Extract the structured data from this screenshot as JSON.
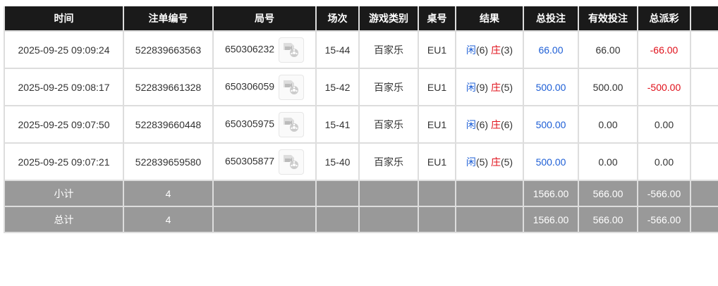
{
  "headers": [
    "时间",
    "注单编号",
    "局号",
    "场次",
    "游戏类别",
    "桌号",
    "结果",
    "总投注",
    "有效投注",
    "总派彩",
    ""
  ],
  "rows": [
    {
      "time": "2025-09-25 09:09:24",
      "bet_id": "522839663563",
      "round": "650306232",
      "shoe": "15-44",
      "game": "百家乐",
      "table": "EU1",
      "player_label": "闲",
      "player": "(6)",
      "banker_label": "庄",
      "banker": "(3)",
      "total_bet": "66.00",
      "valid_bet": "66.00",
      "payout": "-66.00"
    },
    {
      "time": "2025-09-25 09:08:17",
      "bet_id": "522839661328",
      "round": "650306059",
      "shoe": "15-42",
      "game": "百家乐",
      "table": "EU1",
      "player_label": "闲",
      "player": "(9)",
      "banker_label": "庄",
      "banker": "(5)",
      "total_bet": "500.00",
      "valid_bet": "500.00",
      "payout": "-500.00"
    },
    {
      "time": "2025-09-25 09:07:50",
      "bet_id": "522839660448",
      "round": "650305975",
      "shoe": "15-41",
      "game": "百家乐",
      "table": "EU1",
      "player_label": "闲",
      "player": "(6)",
      "banker_label": "庄",
      "banker": "(6)",
      "total_bet": "500.00",
      "valid_bet": "0.00",
      "payout": "0.00"
    },
    {
      "time": "2025-09-25 09:07:21",
      "bet_id": "522839659580",
      "round": "650305877",
      "shoe": "15-40",
      "game": "百家乐",
      "table": "EU1",
      "player_label": "闲",
      "player": "(5)",
      "banker_label": "庄",
      "banker": "(5)",
      "total_bet": "500.00",
      "valid_bet": "0.00",
      "payout": "0.00"
    }
  ],
  "subtotal": {
    "label": "小计",
    "count": "4",
    "total_bet": "1566.00",
    "valid_bet": "566.00",
    "payout": "-566.00"
  },
  "total": {
    "label": "总计",
    "count": "4",
    "total_bet": "1566.00",
    "valid_bet": "566.00",
    "payout": "-566.00"
  },
  "colors": {
    "header_bg": "#1a1a1a",
    "summary_bg": "#999999",
    "blue": "#1e5fd6",
    "red": "#e0101a"
  }
}
